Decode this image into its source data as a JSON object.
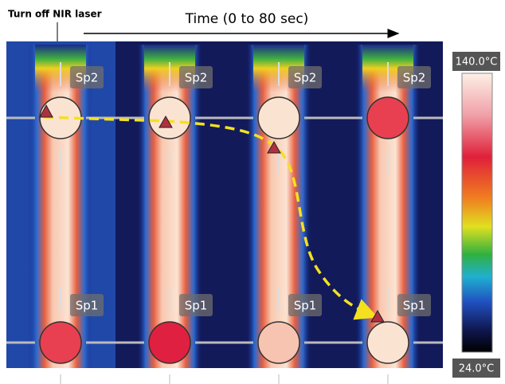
{
  "header": {
    "note": "Turn off NIR laser",
    "time_label": "Time (0 to 80 sec)"
  },
  "panels": [
    {
      "top_label": "Sp2",
      "bottom_label": "Sp1"
    },
    {
      "top_label": "Sp2",
      "bottom_label": "Sp1"
    },
    {
      "top_label": "Sp2",
      "bottom_label": "Sp1"
    },
    {
      "top_label": "Sp2",
      "bottom_label": "Sp1"
    }
  ],
  "colorbar": {
    "max_label": "140.0°C",
    "min_label": "24.0°C"
  }
}
